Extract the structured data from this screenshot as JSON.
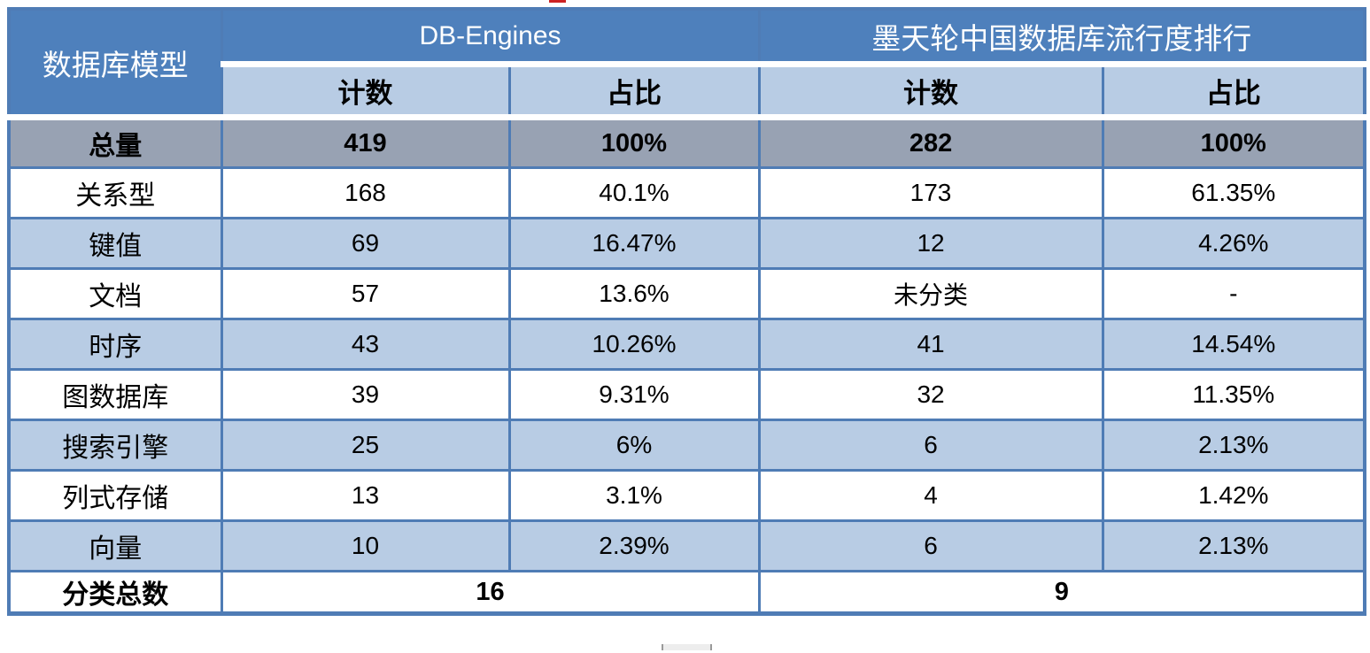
{
  "colors": {
    "header_blue": "#4e80bc",
    "subheader_blue": "#b8cce4",
    "total_row_gray": "#98a2b3",
    "row_alt_blue": "#b8cce4",
    "border_blue": "#4f7cb5",
    "header_text": "#ffffff",
    "artifact_red": "#cc2222",
    "scrollbar_gray": "#ededed"
  },
  "table": {
    "model_header": "数据库模型",
    "groups": [
      {
        "label": "DB-Engines"
      },
      {
        "label": "墨天轮中国数据库流行度排行"
      }
    ],
    "subheaders": [
      "计数",
      "占比",
      "计数",
      "占比"
    ],
    "rows": [
      {
        "label": "总量",
        "cells": [
          "419",
          "100%",
          "282",
          "100%"
        ],
        "kind": "total"
      },
      {
        "label": "关系型",
        "cells": [
          "168",
          "40.1%",
          "173",
          "61.35%"
        ],
        "kind": "white"
      },
      {
        "label": "键值",
        "cells": [
          "69",
          "16.47%",
          "12",
          "4.26%"
        ],
        "kind": "alt"
      },
      {
        "label": "文档",
        "cells": [
          "57",
          "13.6%",
          "未分类",
          "-"
        ],
        "kind": "white"
      },
      {
        "label": "时序",
        "cells": [
          "43",
          "10.26%",
          "41",
          "14.54%"
        ],
        "kind": "alt"
      },
      {
        "label": "图数据库",
        "cells": [
          "39",
          "9.31%",
          "32",
          "11.35%"
        ],
        "kind": "white"
      },
      {
        "label": "搜索引擎",
        "cells": [
          "25",
          "6%",
          "6",
          "2.13%"
        ],
        "kind": "alt"
      },
      {
        "label": "列式存储",
        "cells": [
          "13",
          "3.1%",
          "4",
          "1.42%"
        ],
        "kind": "white"
      },
      {
        "label": "向量",
        "cells": [
          "10",
          "2.39%",
          "6",
          "2.13%"
        ],
        "kind": "alt"
      }
    ],
    "footer": {
      "label": "分类总数",
      "db_engines_total": "16",
      "motianlun_total": "9"
    }
  },
  "chart_data": {
    "type": "table",
    "columns": [
      "数据库模型",
      "DB-Engines 计数",
      "DB-Engines 占比",
      "墨天轮中国数据库流行度排行 计数",
      "墨天轮中国数据库流行度排行 占比"
    ],
    "rows": [
      [
        "总量",
        "419",
        "100%",
        "282",
        "100%"
      ],
      [
        "关系型",
        "168",
        "40.1%",
        "173",
        "61.35%"
      ],
      [
        "键值",
        "69",
        "16.47%",
        "12",
        "4.26%"
      ],
      [
        "文档",
        "57",
        "13.6%",
        "未分类",
        "-"
      ],
      [
        "时序",
        "43",
        "10.26%",
        "41",
        "14.54%"
      ],
      [
        "图数据库",
        "39",
        "9.31%",
        "32",
        "11.35%"
      ],
      [
        "搜索引擎",
        "25",
        "6%",
        "6",
        "2.13%"
      ],
      [
        "列式存储",
        "13",
        "3.1%",
        "4",
        "1.42%"
      ],
      [
        "向量",
        "10",
        "2.39%",
        "6",
        "2.13%"
      ],
      [
        "分类总数",
        "16",
        "16",
        "9",
        "9"
      ]
    ]
  }
}
